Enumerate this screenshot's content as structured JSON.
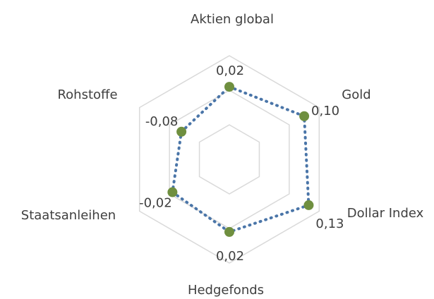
{
  "chart_data": {
    "type": "radar",
    "categories": [
      "Aktien global",
      "Gold",
      "Dollar Index",
      "Hedgefonds",
      "Staatsanleihen",
      "Rohstoffe"
    ],
    "series": [
      {
        "values": [
          0.02,
          0.1,
          0.13,
          0.02,
          -0.02,
          -0.08
        ],
        "data_labels": [
          "0,02",
          "0,10",
          "0,13",
          "0,02",
          "-0,02",
          "-0,08"
        ]
      }
    ],
    "radial_range": [
      -0.4,
      0.2
    ],
    "grid": true,
    "colors": {
      "grid": "#d9d9d9",
      "line": "#4a75a8",
      "marker": "#6f8f3f",
      "text": "#3f3f3f"
    }
  }
}
